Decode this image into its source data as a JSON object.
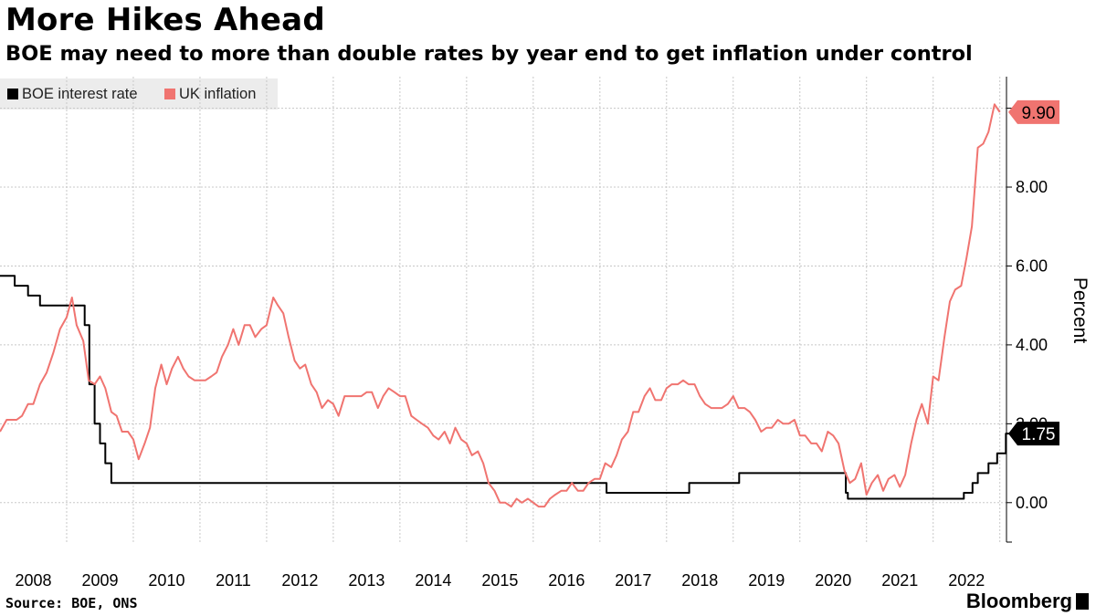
{
  "title": "More Hikes Ahead",
  "subtitle": "BOE may need to more than double rates by year end to get inflation under control",
  "source": "Source: BOE, ONS",
  "brand": "Bloomberg",
  "chart_data": {
    "type": "line",
    "ylabel": "Percent",
    "y_axis_position": "right",
    "ylim": [
      -1,
      10.8
    ],
    "yticks": [
      0,
      2,
      4,
      6,
      8
    ],
    "ytick_labels": [
      "0.00",
      "2.00",
      "4.00",
      "6.00",
      "8.00"
    ],
    "xlim": [
      2007.5,
      2022.6
    ],
    "xticks": [
      2008,
      2009,
      2010,
      2011,
      2012,
      2013,
      2014,
      2015,
      2016,
      2017,
      2018,
      2019,
      2020,
      2021,
      2022
    ],
    "xtick_labels": [
      "2008",
      "2009",
      "2010",
      "2011",
      "2012",
      "2013",
      "2014",
      "2015",
      "2016",
      "2017",
      "2018",
      "2019",
      "2020",
      "2021",
      "2022"
    ],
    "grid": true,
    "legend": "top-left",
    "series": [
      {
        "name": "BOE interest rate",
        "color": "#000000",
        "step": true,
        "end_label": "1.75",
        "points": [
          [
            2007.5,
            5.75
          ],
          [
            2007.72,
            5.5
          ],
          [
            2007.92,
            5.25
          ],
          [
            2008.1,
            5.0
          ],
          [
            2008.77,
            4.5
          ],
          [
            2008.84,
            3.0
          ],
          [
            2008.92,
            2.0
          ],
          [
            2009.0,
            1.5
          ],
          [
            2009.08,
            1.0
          ],
          [
            2009.17,
            0.5
          ],
          [
            2016.6,
            0.25
          ],
          [
            2017.84,
            0.5
          ],
          [
            2018.59,
            0.75
          ],
          [
            2020.19,
            0.25
          ],
          [
            2020.22,
            0.1
          ],
          [
            2021.96,
            0.25
          ],
          [
            2022.09,
            0.5
          ],
          [
            2022.17,
            0.75
          ],
          [
            2022.33,
            1.0
          ],
          [
            2022.46,
            1.25
          ],
          [
            2022.59,
            1.75
          ],
          [
            2022.7,
            1.75
          ]
        ]
      },
      {
        "name": "UK inflation",
        "color": "#f07470",
        "end_label": "9.90",
        "points": [
          [
            2007.5,
            1.8
          ],
          [
            2007.6,
            2.1
          ],
          [
            2007.75,
            2.1
          ],
          [
            2007.83,
            2.2
          ],
          [
            2007.92,
            2.5
          ],
          [
            2008.0,
            2.5
          ],
          [
            2008.1,
            3.0
          ],
          [
            2008.2,
            3.3
          ],
          [
            2008.3,
            3.8
          ],
          [
            2008.4,
            4.4
          ],
          [
            2008.5,
            4.7
          ],
          [
            2008.58,
            5.2
          ],
          [
            2008.65,
            4.5
          ],
          [
            2008.75,
            4.1
          ],
          [
            2008.83,
            3.1
          ],
          [
            2008.92,
            3.0
          ],
          [
            2009.0,
            3.2
          ],
          [
            2009.08,
            2.9
          ],
          [
            2009.17,
            2.3
          ],
          [
            2009.25,
            2.2
          ],
          [
            2009.33,
            1.8
          ],
          [
            2009.42,
            1.8
          ],
          [
            2009.5,
            1.6
          ],
          [
            2009.58,
            1.1
          ],
          [
            2009.67,
            1.5
          ],
          [
            2009.75,
            1.9
          ],
          [
            2009.83,
            2.9
          ],
          [
            2009.92,
            3.5
          ],
          [
            2010.0,
            3.0
          ],
          [
            2010.08,
            3.4
          ],
          [
            2010.17,
            3.7
          ],
          [
            2010.25,
            3.4
          ],
          [
            2010.33,
            3.2
          ],
          [
            2010.42,
            3.1
          ],
          [
            2010.5,
            3.1
          ],
          [
            2010.58,
            3.1
          ],
          [
            2010.67,
            3.2
          ],
          [
            2010.75,
            3.3
          ],
          [
            2010.83,
            3.7
          ],
          [
            2010.92,
            4.0
          ],
          [
            2011.0,
            4.4
          ],
          [
            2011.08,
            4.0
          ],
          [
            2011.17,
            4.5
          ],
          [
            2011.25,
            4.5
          ],
          [
            2011.33,
            4.2
          ],
          [
            2011.42,
            4.4
          ],
          [
            2011.5,
            4.5
          ],
          [
            2011.6,
            5.2
          ],
          [
            2011.67,
            5.0
          ],
          [
            2011.75,
            4.8
          ],
          [
            2011.83,
            4.2
          ],
          [
            2011.92,
            3.6
          ],
          [
            2012.0,
            3.4
          ],
          [
            2012.08,
            3.5
          ],
          [
            2012.17,
            3.0
          ],
          [
            2012.25,
            2.8
          ],
          [
            2012.33,
            2.4
          ],
          [
            2012.42,
            2.6
          ],
          [
            2012.5,
            2.5
          ],
          [
            2012.58,
            2.2
          ],
          [
            2012.67,
            2.7
          ],
          [
            2012.75,
            2.7
          ],
          [
            2012.83,
            2.7
          ],
          [
            2012.92,
            2.7
          ],
          [
            2013.0,
            2.8
          ],
          [
            2013.08,
            2.8
          ],
          [
            2013.17,
            2.4
          ],
          [
            2013.25,
            2.7
          ],
          [
            2013.33,
            2.9
          ],
          [
            2013.42,
            2.8
          ],
          [
            2013.5,
            2.7
          ],
          [
            2013.58,
            2.7
          ],
          [
            2013.67,
            2.2
          ],
          [
            2013.75,
            2.1
          ],
          [
            2013.83,
            2.0
          ],
          [
            2013.92,
            1.9
          ],
          [
            2014.0,
            1.7
          ],
          [
            2014.08,
            1.6
          ],
          [
            2014.17,
            1.8
          ],
          [
            2014.25,
            1.5
          ],
          [
            2014.33,
            1.9
          ],
          [
            2014.42,
            1.6
          ],
          [
            2014.5,
            1.5
          ],
          [
            2014.58,
            1.2
          ],
          [
            2014.67,
            1.3
          ],
          [
            2014.75,
            1.0
          ],
          [
            2014.83,
            0.5
          ],
          [
            2014.92,
            0.3
          ],
          [
            2015.0,
            0.0
          ],
          [
            2015.08,
            0.0
          ],
          [
            2015.17,
            -0.1
          ],
          [
            2015.25,
            0.1
          ],
          [
            2015.33,
            0.0
          ],
          [
            2015.42,
            0.1
          ],
          [
            2015.5,
            0.0
          ],
          [
            2015.58,
            -0.1
          ],
          [
            2015.67,
            -0.1
          ],
          [
            2015.75,
            0.1
          ],
          [
            2015.83,
            0.2
          ],
          [
            2015.92,
            0.3
          ],
          [
            2016.0,
            0.3
          ],
          [
            2016.08,
            0.5
          ],
          [
            2016.17,
            0.3
          ],
          [
            2016.25,
            0.3
          ],
          [
            2016.33,
            0.5
          ],
          [
            2016.42,
            0.6
          ],
          [
            2016.5,
            0.6
          ],
          [
            2016.58,
            1.0
          ],
          [
            2016.67,
            0.9
          ],
          [
            2016.75,
            1.2
          ],
          [
            2016.83,
            1.6
          ],
          [
            2016.92,
            1.8
          ],
          [
            2017.0,
            2.3
          ],
          [
            2017.08,
            2.3
          ],
          [
            2017.17,
            2.7
          ],
          [
            2017.25,
            2.9
          ],
          [
            2017.33,
            2.6
          ],
          [
            2017.42,
            2.6
          ],
          [
            2017.5,
            2.9
          ],
          [
            2017.58,
            3.0
          ],
          [
            2017.67,
            3.0
          ],
          [
            2017.75,
            3.1
          ],
          [
            2017.83,
            3.0
          ],
          [
            2017.92,
            3.0
          ],
          [
            2018.0,
            2.7
          ],
          [
            2018.08,
            2.5
          ],
          [
            2018.17,
            2.4
          ],
          [
            2018.25,
            2.4
          ],
          [
            2018.33,
            2.4
          ],
          [
            2018.42,
            2.5
          ],
          [
            2018.5,
            2.7
          ],
          [
            2018.58,
            2.4
          ],
          [
            2018.67,
            2.4
          ],
          [
            2018.75,
            2.3
          ],
          [
            2018.83,
            2.1
          ],
          [
            2018.92,
            1.8
          ],
          [
            2019.0,
            1.9
          ],
          [
            2019.08,
            1.9
          ],
          [
            2019.17,
            2.1
          ],
          [
            2019.25,
            2.0
          ],
          [
            2019.33,
            2.0
          ],
          [
            2019.42,
            2.1
          ],
          [
            2019.5,
            1.7
          ],
          [
            2019.58,
            1.7
          ],
          [
            2019.67,
            1.5
          ],
          [
            2019.75,
            1.5
          ],
          [
            2019.83,
            1.3
          ],
          [
            2019.92,
            1.8
          ],
          [
            2020.0,
            1.7
          ],
          [
            2020.08,
            1.5
          ],
          [
            2020.17,
            0.8
          ],
          [
            2020.25,
            0.5
          ],
          [
            2020.33,
            0.6
          ],
          [
            2020.42,
            1.0
          ],
          [
            2020.5,
            0.2
          ],
          [
            2020.58,
            0.5
          ],
          [
            2020.67,
            0.7
          ],
          [
            2020.75,
            0.3
          ],
          [
            2020.83,
            0.6
          ],
          [
            2020.92,
            0.7
          ],
          [
            2021.0,
            0.4
          ],
          [
            2021.08,
            0.7
          ],
          [
            2021.17,
            1.5
          ],
          [
            2021.25,
            2.1
          ],
          [
            2021.33,
            2.5
          ],
          [
            2021.42,
            2.0
          ],
          [
            2021.5,
            3.2
          ],
          [
            2021.58,
            3.1
          ],
          [
            2021.67,
            4.2
          ],
          [
            2021.75,
            5.1
          ],
          [
            2021.83,
            5.4
          ],
          [
            2021.92,
            5.5
          ],
          [
            2022.0,
            6.2
          ],
          [
            2022.08,
            7.0
          ],
          [
            2022.17,
            9.0
          ],
          [
            2022.25,
            9.1
          ],
          [
            2022.33,
            9.4
          ],
          [
            2022.42,
            10.1
          ],
          [
            2022.5,
            9.9
          ]
        ]
      }
    ]
  }
}
